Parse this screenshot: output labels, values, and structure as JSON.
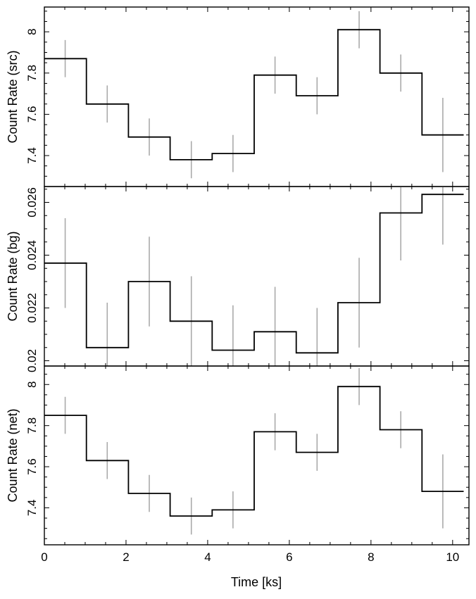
{
  "xlabel": "Time [ks]",
  "x_ticks": [
    0,
    2,
    4,
    6,
    8,
    10
  ],
  "x_tick_labels": [
    "0",
    "2",
    "4",
    "6",
    "8",
    "10"
  ],
  "xlim": [
    0,
    10.4
  ],
  "colors": {
    "step": "#000000",
    "errorbar": "#aaaaaa",
    "frame": "#000000"
  },
  "chart_data": [
    {
      "type": "line",
      "ylabel": "Count Rate (src)",
      "ylim": [
        7.25,
        8.12
      ],
      "y_ticks": [
        7.4,
        7.6,
        7.8,
        8.0
      ],
      "y_tick_labels": [
        "7.4",
        "7.6",
        "7.8",
        "8"
      ],
      "bin_edges": [
        0,
        1.03,
        2.06,
        3.08,
        4.11,
        5.14,
        6.17,
        7.19,
        8.22,
        9.25,
        10.27
      ],
      "series": [
        {
          "x": [
            0.51,
            1.54,
            2.57,
            3.6,
            4.62,
            5.65,
            6.68,
            7.71,
            8.73,
            9.76
          ],
          "values": [
            7.87,
            7.65,
            7.49,
            7.38,
            7.41,
            7.79,
            7.69,
            8.01,
            7.8,
            7.5
          ],
          "error": [
            0.09,
            0.09,
            0.09,
            0.09,
            0.09,
            0.09,
            0.09,
            0.09,
            0.09,
            0.18
          ]
        }
      ]
    },
    {
      "type": "line",
      "ylabel": "Count Rate (bg)",
      "ylim": [
        0.0198,
        0.0266
      ],
      "y_ticks": [
        0.02,
        0.022,
        0.024,
        0.026
      ],
      "y_tick_labels": [
        "0.02",
        "0.022",
        "0.024",
        "0.026"
      ],
      "bin_edges": [
        0,
        1.03,
        2.06,
        3.08,
        4.11,
        5.14,
        6.17,
        7.19,
        8.22,
        9.25,
        10.27
      ],
      "series": [
        {
          "x": [
            0.51,
            1.54,
            2.57,
            3.6,
            4.62,
            5.65,
            6.68,
            7.71,
            8.73,
            9.76
          ],
          "values": [
            0.0237,
            0.0205,
            0.023,
            0.0215,
            0.0204,
            0.0211,
            0.0203,
            0.0222,
            0.0256,
            0.0263
          ],
          "error": [
            0.0017,
            0.0017,
            0.0017,
            0.0017,
            0.0017,
            0.0017,
            0.0017,
            0.0017,
            0.0018,
            0.0019
          ]
        }
      ]
    },
    {
      "type": "line",
      "ylabel": "Count Rate (net)",
      "ylim": [
        7.22,
        8.09
      ],
      "y_ticks": [
        7.4,
        7.6,
        7.8,
        8.0
      ],
      "y_tick_labels": [
        "7.4",
        "7.6",
        "7.8",
        "8"
      ],
      "bin_edges": [
        0,
        1.03,
        2.06,
        3.08,
        4.11,
        5.14,
        6.17,
        7.19,
        8.22,
        9.25,
        10.27
      ],
      "series": [
        {
          "x": [
            0.51,
            1.54,
            2.57,
            3.6,
            4.62,
            5.65,
            6.68,
            7.71,
            8.73,
            9.76
          ],
          "values": [
            7.85,
            7.63,
            7.47,
            7.36,
            7.39,
            7.77,
            7.67,
            7.99,
            7.78,
            7.48
          ],
          "error": [
            0.09,
            0.09,
            0.09,
            0.09,
            0.09,
            0.09,
            0.09,
            0.09,
            0.09,
            0.18
          ]
        }
      ]
    }
  ]
}
